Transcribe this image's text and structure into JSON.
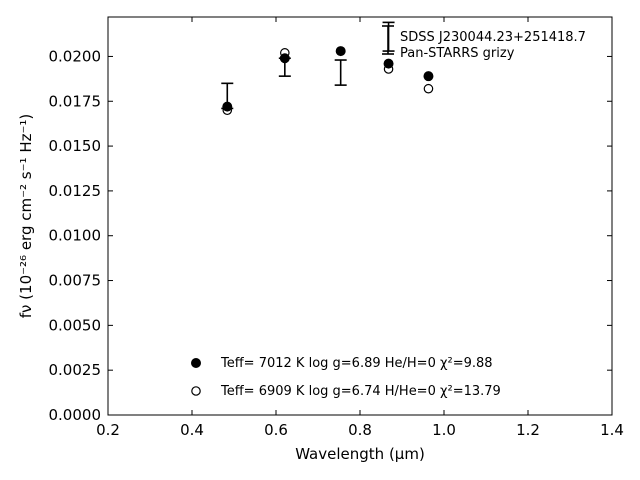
{
  "chart_data": {
    "type": "scatter",
    "xlabel": "Wavelength (μm)",
    "ylabel": "fν (10⁻²⁶ erg cm⁻² s⁻¹ Hz⁻¹)",
    "xlim": [
      0.2,
      1.4
    ],
    "ylim": [
      0.0,
      0.0222
    ],
    "xticks": [
      "0.2",
      "0.4",
      "0.6",
      "0.8",
      "1.0",
      "1.2",
      "1.4"
    ],
    "yticks": [
      "0.0000",
      "0.0025",
      "0.0050",
      "0.0075",
      "0.0100",
      "0.0125",
      "0.0150",
      "0.0175",
      "0.0200"
    ],
    "grid": false,
    "observed": {
      "name": "SDSS J230044.23+251418.7",
      "survey": "Pan-STARRS grizy",
      "x": [
        0.484,
        0.621,
        0.754,
        0.868,
        0.963
      ],
      "y": [
        0.0178,
        0.0194,
        0.0191,
        0.0211,
        null
      ],
      "err": [
        0.0007,
        0.0005,
        0.0007,
        0.0008,
        null
      ]
    },
    "series": [
      {
        "name": "Teff=  7012 K  log g=6.89  He/H=0  χ²=9.88",
        "marker": "filled-circle",
        "x": [
          0.484,
          0.621,
          0.754,
          0.868,
          0.963
        ],
        "y": [
          0.0172,
          0.0199,
          0.0203,
          0.0196,
          0.0189
        ]
      },
      {
        "name": "Teff=  6909 K  log g=6.74  H/He=0  χ²=13.79",
        "marker": "open-circle",
        "x": [
          0.484,
          0.621,
          0.754,
          0.868,
          0.963
        ],
        "y": [
          0.017,
          0.0202,
          null,
          0.0193,
          0.0182
        ]
      }
    ],
    "legend_placement": "bottom-center",
    "annotation_placement": "top-right"
  }
}
